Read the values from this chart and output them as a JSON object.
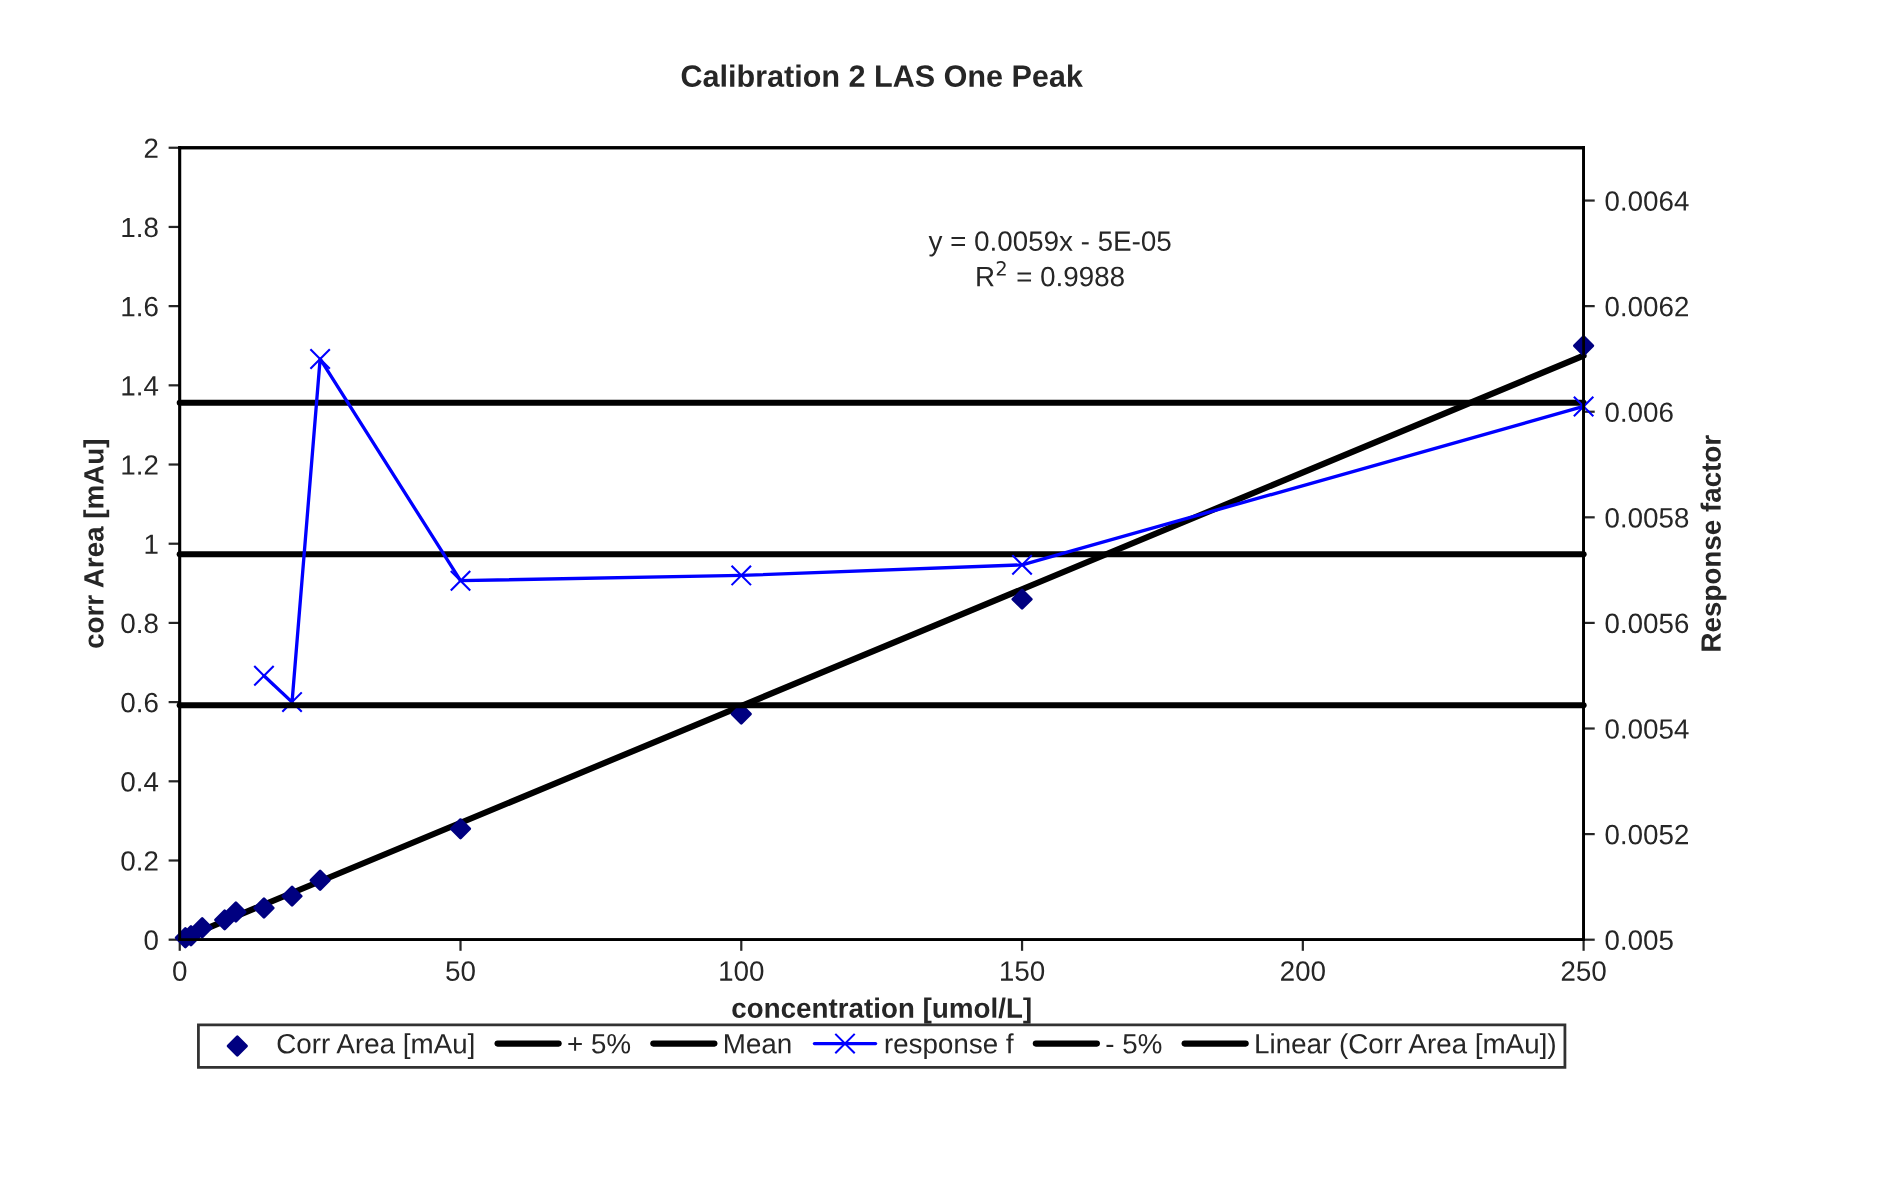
{
  "chart_data": {
    "type": "scatter",
    "title": "Calibration 2 LAS One Peak",
    "xlabel": "concentration [umol/L]",
    "ylabel": "corr Area [mAu]",
    "y2label": "Response factor",
    "xlim": [
      0,
      250
    ],
    "xticks": [
      0,
      50,
      100,
      150,
      200,
      250
    ],
    "ylim": [
      0,
      2
    ],
    "yticks": [
      0,
      0.2,
      0.4,
      0.6,
      0.8,
      1,
      1.2,
      1.4,
      1.6,
      1.8,
      2
    ],
    "y2lim": [
      0.005,
      0.0065
    ],
    "y2ticks": [
      0.005,
      0.0052,
      0.0054,
      0.0056,
      0.0058,
      0.006,
      0.0062,
      0.0064
    ],
    "grid": false,
    "legend": "bottom",
    "annotations": [
      "y = 0.0059x - 5E-05",
      "R$^{2}$ = 0.9988"
    ],
    "series": [
      {
        "name": "Corr Area [mAu]",
        "marker": "diamond",
        "color": "#000080",
        "x": [
          1,
          2,
          4,
          8,
          10,
          15,
          20,
          25,
          50,
          100,
          150,
          250
        ],
        "values": [
          0.005,
          0.01,
          0.03,
          0.05,
          0.07,
          0.08,
          0.11,
          0.15,
          0.28,
          0.57,
          0.86,
          1.5
        ]
      },
      {
        "name": "+ 5%",
        "type": "line",
        "axis": "y2",
        "marker": "none",
        "color": "#000000",
        "x": [
          0,
          250
        ],
        "values": [
          0.006017,
          0.006017
        ]
      },
      {
        "name": "Mean",
        "type": "line",
        "axis": "y2",
        "marker": "none",
        "color": "#000000",
        "x": [
          0,
          250
        ],
        "values": [
          0.00573,
          0.00573
        ]
      },
      {
        "name": "response f",
        "type": "line",
        "axis": "y2",
        "marker": "cross",
        "color": "#0000ff",
        "x": [
          15,
          20,
          25,
          50,
          100,
          150,
          250
        ],
        "values": [
          0.0055,
          0.00545,
          0.0061,
          0.00568,
          0.00569,
          0.00571,
          0.00601
        ]
      },
      {
        "name": "- 5%",
        "type": "line",
        "axis": "y2",
        "marker": "none",
        "color": "#000000",
        "x": [
          0,
          250
        ],
        "values": [
          0.005444,
          0.005444
        ]
      },
      {
        "name": "Linear (Corr Area [mAu])",
        "type": "line",
        "marker": "none",
        "color": "#000000",
        "x": [
          1,
          250
        ],
        "values": [
          0.006,
          1.475
        ]
      }
    ]
  }
}
